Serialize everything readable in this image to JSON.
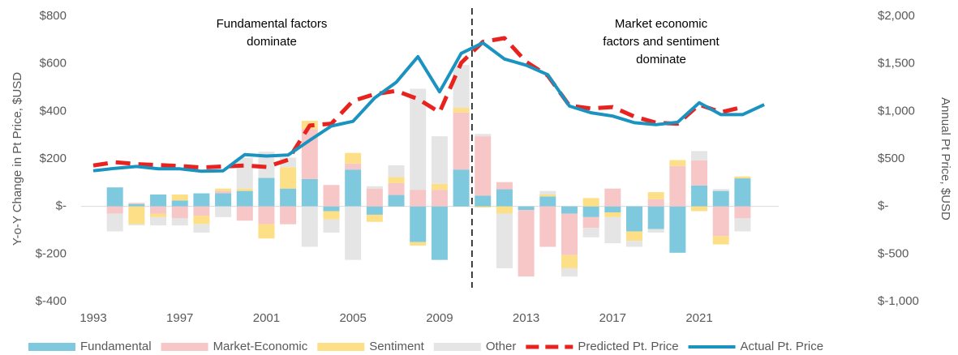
{
  "chart_data": {
    "type": "bar-line",
    "ylabel": "Y-o-Y Change in Pt Price, $USD",
    "y2label": "Annual Pt Price, $USD",
    "annotations": [
      {
        "lines": [
          "Fundamental  factors",
          "dominate"
        ]
      },
      {
        "lines": [
          "Market economic",
          "factors and sentiment",
          "dominate"
        ]
      }
    ],
    "categories": [
      "1993",
      null,
      null,
      null,
      "1997",
      null,
      null,
      null,
      "2001",
      null,
      null,
      null,
      "2005",
      null,
      null,
      null,
      "2009",
      null,
      null,
      null,
      "2013",
      null,
      null,
      null,
      "2017",
      null,
      null,
      null,
      "2021",
      null,
      null,
      null
    ],
    "ylim": [
      -400,
      800
    ],
    "yticks": [
      {
        "value": 800,
        "label": "$800"
      },
      {
        "value": 600,
        "label": "$600"
      },
      {
        "value": 400,
        "label": "$400"
      },
      {
        "value": 200,
        "label": "$200"
      },
      {
        "value": 0,
        "label": "$-"
      },
      {
        "value": -200,
        "label": "$-200"
      },
      {
        "value": -400,
        "label": "$-400"
      }
    ],
    "y2lim": [
      -1000,
      2000
    ],
    "y2ticks": [
      {
        "value": 2000,
        "label": "$2,000"
      },
      {
        "value": 1500,
        "label": "$1,500"
      },
      {
        "value": 1000,
        "label": "$1,000"
      },
      {
        "value": 500,
        "label": "$500"
      },
      {
        "value": 0,
        "label": "$-"
      },
      {
        "value": -500,
        "label": "$-500"
      },
      {
        "value": -1000,
        "label": "$-1,000"
      }
    ],
    "series": [
      {
        "name": "Fundamental",
        "kind": "bar",
        "color": "#7fc9df",
        "values": [
          null,
          80,
          10,
          50,
          25,
          55,
          55,
          65,
          120,
          75,
          115,
          -20,
          155,
          -35,
          48,
          -150,
          -225,
          155,
          45,
          72,
          -15,
          42,
          -30,
          -45,
          -25,
          -105,
          -95,
          -195,
          88,
          65,
          118,
          null
        ]
      },
      {
        "name": "Market-Economic",
        "kind": "bar",
        "color": "#f7c6c7",
        "values": [
          null,
          -30,
          5,
          -30,
          -50,
          -40,
          10,
          -60,
          -75,
          -75,
          210,
          90,
          25,
          75,
          50,
          70,
          70,
          240,
          250,
          30,
          -280,
          -170,
          -175,
          -45,
          75,
          0,
          30,
          170,
          105,
          -125,
          -50,
          null
        ]
      },
      {
        "name": "Sentiment",
        "kind": "bar",
        "color": "#fddf88",
        "values": [
          null,
          0,
          -75,
          -15,
          25,
          -35,
          10,
          10,
          -60,
          90,
          35,
          -35,
          45,
          -30,
          25,
          -15,
          25,
          20,
          -5,
          -30,
          0,
          8,
          -55,
          35,
          -20,
          -40,
          30,
          25,
          -20,
          -35,
          8,
          null
        ]
      },
      {
        "name": "Other",
        "kind": "bar",
        "color": "#e5e5e5",
        "values": [
          null,
          -75,
          -5,
          -35,
          -30,
          -35,
          -45,
          130,
          110,
          40,
          -170,
          -55,
          -225,
          10,
          50,
          425,
          200,
          180,
          10,
          -230,
          0,
          15,
          -35,
          -40,
          -110,
          -25,
          -15,
          0,
          40,
          8,
          -55,
          null
        ]
      },
      {
        "name": "Predicted Pt. Price",
        "kind": "line",
        "dashed": true,
        "axis": "y2",
        "color": "#e8231f",
        "values": [
          430,
          465,
          445,
          435,
          425,
          410,
          420,
          430,
          415,
          490,
          850,
          870,
          1110,
          1180,
          1215,
          1130,
          990,
          1510,
          1730,
          1770,
          1520,
          1375,
          1060,
          1030,
          1045,
          945,
          880,
          870,
          1070,
          990,
          1045,
          null
        ]
      },
      {
        "name": "Actual Pt. Price",
        "kind": "line",
        "axis": "y2",
        "color": "#1a93c0",
        "values": [
          375,
          400,
          420,
          395,
          395,
          370,
          375,
          545,
          530,
          540,
          695,
          845,
          895,
          1140,
          1305,
          1575,
          1205,
          1610,
          1720,
          1550,
          1485,
          1385,
          1055,
          985,
          950,
          880,
          860,
          885,
          1090,
          965,
          965,
          1070
        ]
      }
    ]
  }
}
